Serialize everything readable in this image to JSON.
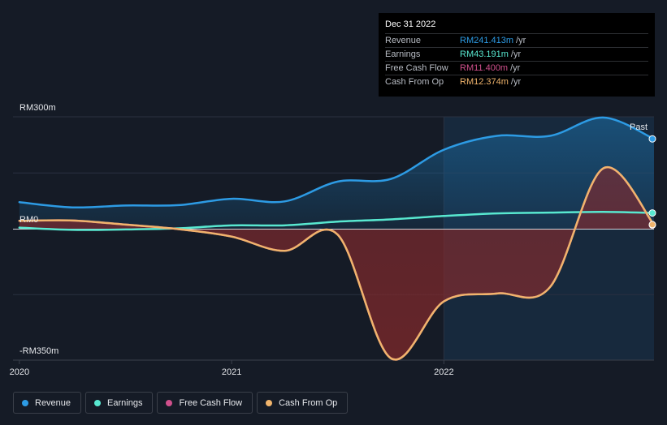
{
  "chart_data": {
    "type": "line",
    "title": "",
    "xlabel": "",
    "ylabel": "",
    "y_axis_labels": {
      "top": "RM300m",
      "zero": "RM0",
      "bottom": "-RM350m"
    },
    "ylim": [
      -350,
      300
    ],
    "xlim": [
      2019.97,
      2022.99
    ],
    "x_ticks": [
      {
        "value": 2020.0,
        "label": "2020"
      },
      {
        "value": 2021.0,
        "label": "2021"
      },
      {
        "value": 2022.0,
        "label": "2022"
      }
    ],
    "past_label": "Past",
    "past_start": 2022.0,
    "series": [
      {
        "name": "Revenue",
        "color": "#2d9be4",
        "x": [
          2020.0,
          2020.25,
          2020.5,
          2020.75,
          2021.0,
          2021.25,
          2021.5,
          2021.75,
          2022.0,
          2022.25,
          2022.5,
          2022.75,
          2022.99
        ],
        "y": [
          72,
          58,
          63,
          64,
          81,
          74,
          127,
          134,
          212,
          249,
          249,
          298,
          241
        ]
      },
      {
        "name": "Earnings",
        "color": "#58e8d0",
        "x": [
          2020.0,
          2020.25,
          2020.5,
          2020.75,
          2021.0,
          2021.25,
          2021.5,
          2021.75,
          2022.0,
          2022.25,
          2022.5,
          2022.75,
          2022.99
        ],
        "y": [
          4,
          -2,
          -1,
          2,
          10,
          10,
          20,
          26,
          35,
          42,
          44,
          46,
          43
        ]
      },
      {
        "name": "Free Cash Flow",
        "color": "#d0508c",
        "x": [
          2020.0,
          2020.25,
          2020.5,
          2020.75,
          2021.0,
          2021.25,
          2021.5,
          2021.75,
          2022.0,
          2022.25,
          2022.5,
          2022.75,
          2022.99
        ],
        "y": [
          22,
          23,
          12,
          0,
          -20,
          -58,
          -15,
          -345,
          -193,
          -172,
          -155,
          162,
          11
        ]
      },
      {
        "name": "Cash From Op",
        "color": "#f0b46c",
        "x": [
          2020.0,
          2020.25,
          2020.5,
          2020.75,
          2021.0,
          2021.25,
          2021.5,
          2021.75,
          2022.0,
          2022.25,
          2022.5,
          2022.75,
          2022.99
        ],
        "y": [
          22,
          23,
          12,
          0,
          -20,
          -58,
          -15,
          -345,
          -193,
          -172,
          -155,
          162,
          12
        ]
      }
    ]
  },
  "tooltip": {
    "date": "Dec 31 2022",
    "rows": [
      {
        "name": "Revenue",
        "value": "RM241.413m",
        "unit": "/yr",
        "color": "#2d9be4"
      },
      {
        "name": "Earnings",
        "value": "RM43.191m",
        "unit": "/yr",
        "color": "#58e8d0"
      },
      {
        "name": "Free Cash Flow",
        "value": "RM11.400m",
        "unit": "/yr",
        "color": "#d0508c"
      },
      {
        "name": "Cash From Op",
        "value": "RM12.374m",
        "unit": "/yr",
        "color": "#f0b46c"
      }
    ]
  },
  "legend": [
    {
      "label": "Revenue",
      "color": "#2d9be4"
    },
    {
      "label": "Earnings",
      "color": "#58e8d0"
    },
    {
      "label": "Free Cash Flow",
      "color": "#d0508c"
    },
    {
      "label": "Cash From Op",
      "color": "#f0b46c"
    }
  ]
}
